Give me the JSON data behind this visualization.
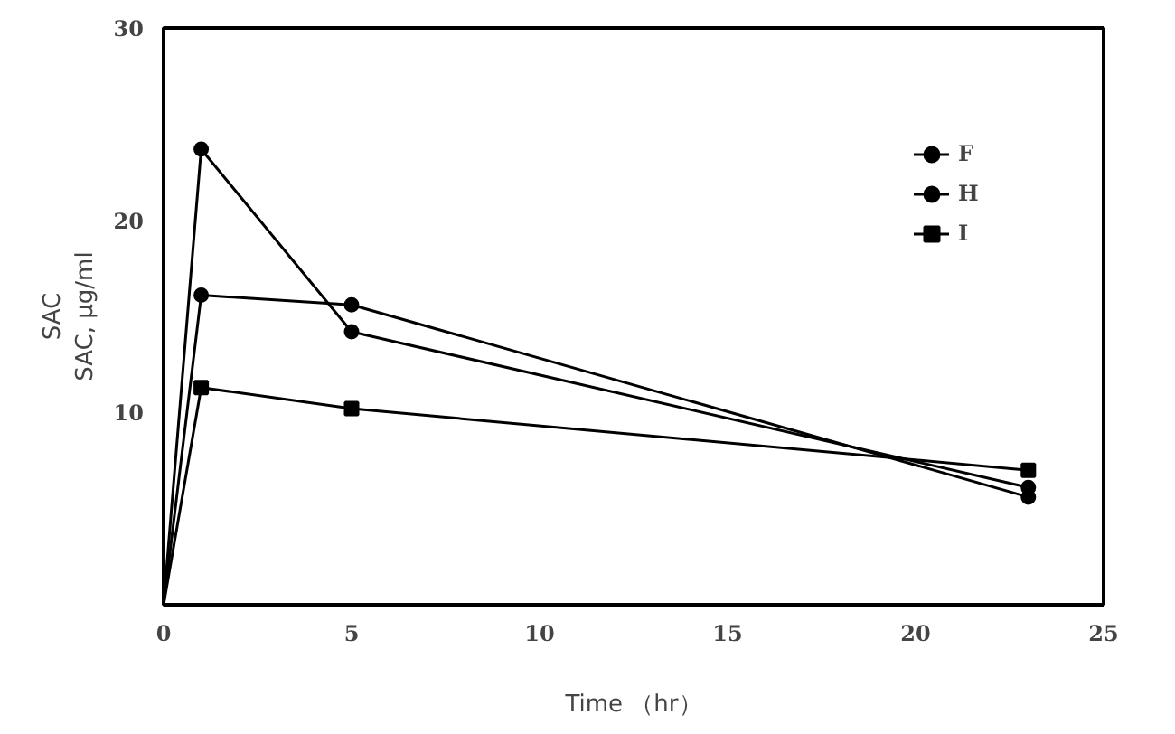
{
  "chart_data": {
    "type": "line",
    "xlabel": "Time （hr）",
    "ylabel": "SAC\nSAC, μg/ml",
    "xlim": [
      0,
      25
    ],
    "xticks": [
      0,
      5,
      10,
      15,
      20,
      25
    ],
    "ylim": [
      0,
      30
    ],
    "yticks": [
      10,
      20,
      30
    ],
    "grid": false,
    "legend": "top right",
    "line_style": "solid",
    "series": [
      {
        "name": "F",
        "color": "#000000",
        "marker": "circle",
        "x": [
          0,
          1,
          5,
          23
        ],
        "values": [
          0,
          23.7,
          14.2,
          6.1
        ]
      },
      {
        "name": "H",
        "color": "#000000",
        "marker": "circle",
        "x": [
          0,
          1,
          5,
          23
        ],
        "values": [
          0,
          16.1,
          15.6,
          5.6
        ]
      },
      {
        "name": "I",
        "color": "#000000",
        "marker": "square",
        "x": [
          0,
          1,
          5,
          23
        ],
        "values": [
          0,
          11.3,
          10.2,
          7.0
        ]
      }
    ]
  }
}
